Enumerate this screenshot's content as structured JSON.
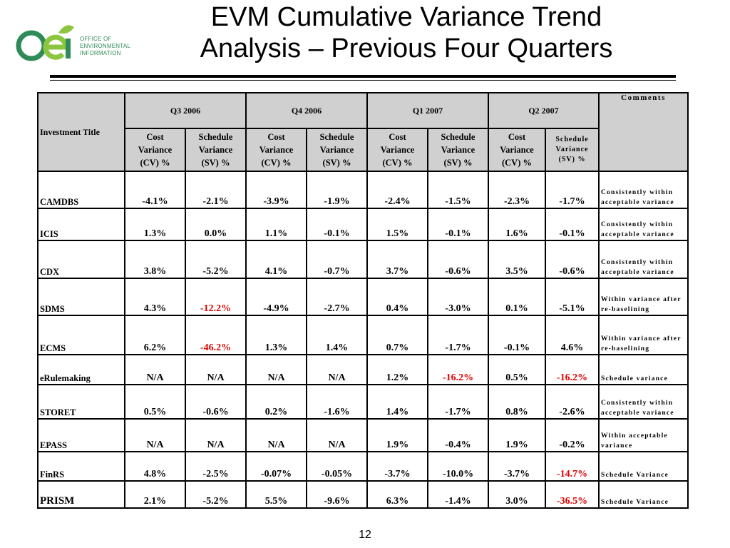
{
  "logo": {
    "text": "OFFICE OF\nENVIRONMENTAL\nINFORMATION",
    "colors": {
      "green": "#2e8b57",
      "light_green": "#8cc63f"
    }
  },
  "title": {
    "line1": "EVM Cumulative Variance Trend",
    "line2": "Analysis – Previous Four Quarters"
  },
  "table": {
    "header": {
      "investment_title": "Investment Title",
      "comments": "Comments",
      "quarters": [
        "Q3 2006",
        "Q4 2006",
        "Q1 2007",
        "Q2 2007"
      ],
      "cv_label": [
        "Cost",
        "Variance",
        "(CV) %"
      ],
      "sv_label": [
        "Schedule",
        "Variance",
        "(SV) %"
      ]
    },
    "rows": [
      {
        "name": "CAMDBS",
        "values": [
          "-4.1%",
          "-2.1%",
          "-3.9%",
          "-1.9%",
          "-2.4%",
          "-1.5%",
          "-2.3%",
          "-1.7%"
        ],
        "comment": "Consistently within acceptable variance"
      },
      {
        "name": "ICIS",
        "values": [
          "1.3%",
          "0.0%",
          "1.1%",
          "-0.1%",
          "1.5%",
          "-0.1%",
          "1.6%",
          "-0.1%"
        ],
        "comment": "Consistently within acceptable variance"
      },
      {
        "name": "CDX",
        "values": [
          "3.8%",
          "-5.2%",
          "4.1%",
          "-0.7%",
          "3.7%",
          "-0.6%",
          "3.5%",
          "-0.6%"
        ],
        "comment": "Consistently within acceptable variance"
      },
      {
        "name": "SDMS",
        "values": [
          "4.3%",
          "-12.2%",
          "-4.9%",
          "-2.7%",
          "0.4%",
          "-3.0%",
          "0.1%",
          "-5.1%"
        ],
        "comment": "Within variance after re-baselining"
      },
      {
        "name": "ECMS",
        "values": [
          "6.2%",
          "-46.2%",
          "1.3%",
          "1.4%",
          "0.7%",
          "-1.7%",
          "-0.1%",
          "4.6%"
        ],
        "comment": "Within variance after re-baselining"
      },
      {
        "name": "eRulemaking",
        "values": [
          "N/A",
          "N/A",
          "N/A",
          "N/A",
          "1.2%",
          "-16.2%",
          "0.5%",
          "-16.2%"
        ],
        "comment": "Schedule variance"
      },
      {
        "name": "STORET",
        "values": [
          "0.5%",
          "-0.6%",
          "0.2%",
          "-1.6%",
          "1.4%",
          "-1.7%",
          "0.8%",
          "-2.6%"
        ],
        "comment": "Consistently within acceptable variance"
      },
      {
        "name": "EPASS",
        "values": [
          "N/A",
          "N/A",
          "N/A",
          "N/A",
          "1.9%",
          "-0.4%",
          "1.9%",
          "-0.2%"
        ],
        "comment": "Within acceptable variance"
      },
      {
        "name": "FinRS",
        "values": [
          "4.8%",
          "-2.5%",
          "-0.07%",
          "-0.05%",
          "-3.7%",
          "-10.0%",
          "-3.7%",
          "-14.7%"
        ],
        "comment": "Schedule Variance"
      },
      {
        "name": "PRISM",
        "values": [
          "2.1%",
          "-5.2%",
          "5.5%",
          "-9.6%",
          "6.3%",
          "-1.4%",
          "3.0%",
          "-36.5%"
        ],
        "comment": "Schedule Variance"
      }
    ],
    "red_cells": [
      [
        3,
        1
      ],
      [
        4,
        1
      ],
      [
        5,
        5
      ],
      [
        5,
        7
      ],
      [
        8,
        7
      ],
      [
        9,
        7
      ]
    ],
    "colors": {
      "header_bg": "#d0d0d0",
      "highlight_red": "#e00000"
    }
  },
  "page_number": "12"
}
